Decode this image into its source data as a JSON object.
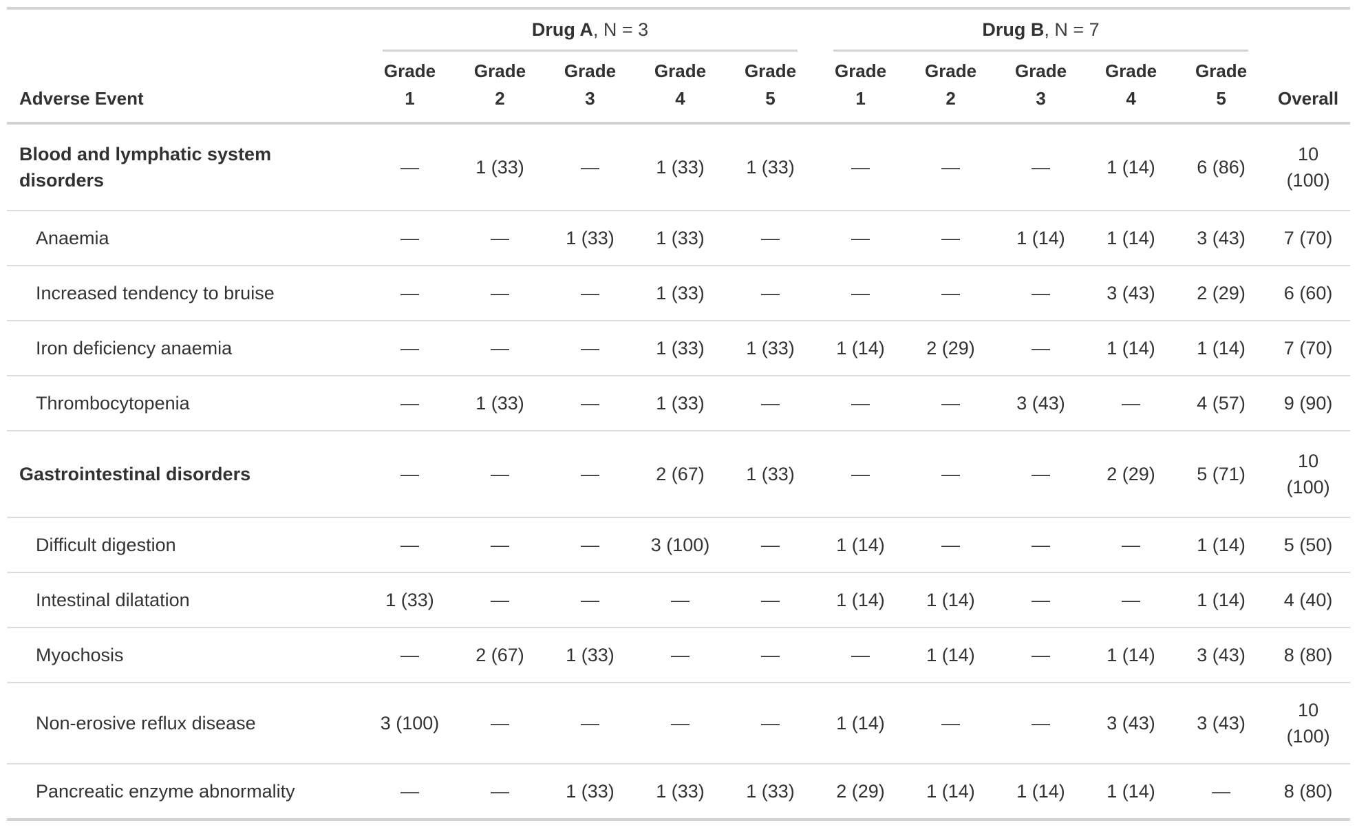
{
  "table": {
    "columns": {
      "row_label": "Adverse Event",
      "overall": "Overall"
    },
    "spanners": [
      {
        "name": "Drug A",
        "suffix": ", N = 3"
      },
      {
        "name": "Drug B",
        "suffix": ", N = 7"
      }
    ],
    "grade_column": {
      "word": "Grade",
      "numbers": [
        "1",
        "2",
        "3",
        "4",
        "5"
      ]
    },
    "rows": [
      {
        "label": "Blood and lymphatic system disorders",
        "group": true,
        "values": [
          "—",
          "1 (33)",
          "—",
          "1 (33)",
          "1 (33)",
          "—",
          "—",
          "—",
          "1 (14)",
          "6 (86)",
          "10 (100)"
        ]
      },
      {
        "label": "Anaemia",
        "group": false,
        "values": [
          "—",
          "—",
          "1 (33)",
          "1 (33)",
          "—",
          "—",
          "—",
          "1 (14)",
          "1 (14)",
          "3 (43)",
          "7 (70)"
        ]
      },
      {
        "label": "Increased tendency to bruise",
        "group": false,
        "values": [
          "—",
          "—",
          "—",
          "1 (33)",
          "—",
          "—",
          "—",
          "—",
          "3 (43)",
          "2 (29)",
          "6 (60)"
        ]
      },
      {
        "label": "Iron deficiency anaemia",
        "group": false,
        "values": [
          "—",
          "—",
          "—",
          "1 (33)",
          "1 (33)",
          "1 (14)",
          "2 (29)",
          "—",
          "1 (14)",
          "1 (14)",
          "7 (70)"
        ]
      },
      {
        "label": "Thrombocytopenia",
        "group": false,
        "values": [
          "—",
          "1 (33)",
          "—",
          "1 (33)",
          "—",
          "—",
          "—",
          "3 (43)",
          "—",
          "4 (57)",
          "9 (90)"
        ]
      },
      {
        "label": "Gastrointestinal disorders",
        "group": true,
        "values": [
          "—",
          "—",
          "—",
          "2 (67)",
          "1 (33)",
          "—",
          "—",
          "—",
          "2 (29)",
          "5 (71)",
          "10 (100)"
        ]
      },
      {
        "label": "Difficult digestion",
        "group": false,
        "values": [
          "—",
          "—",
          "—",
          "3 (100)",
          "—",
          "1 (14)",
          "—",
          "—",
          "—",
          "1 (14)",
          "5 (50)"
        ]
      },
      {
        "label": "Intestinal dilatation",
        "group": false,
        "values": [
          "1 (33)",
          "—",
          "—",
          "—",
          "—",
          "1 (14)",
          "1 (14)",
          "—",
          "—",
          "1 (14)",
          "4 (40)"
        ]
      },
      {
        "label": "Myochosis",
        "group": false,
        "values": [
          "—",
          "2 (67)",
          "1 (33)",
          "—",
          "—",
          "—",
          "1 (14)",
          "—",
          "1 (14)",
          "3 (43)",
          "8 (80)"
        ]
      },
      {
        "label": "Non-erosive reflux disease",
        "group": false,
        "values": [
          "3 (100)",
          "—",
          "—",
          "—",
          "—",
          "1 (14)",
          "—",
          "—",
          "3 (43)",
          "3 (43)",
          "10 (100)"
        ]
      },
      {
        "label": "Pancreatic enzyme abnormality",
        "group": false,
        "values": [
          "—",
          "—",
          "1 (33)",
          "1 (33)",
          "1 (33)",
          "2 (29)",
          "1 (14)",
          "1 (14)",
          "1 (14)",
          "—",
          "8 (80)"
        ]
      }
    ],
    "colors": {
      "border_heavy": "#d3d3d3",
      "border_light": "#dcdcdc",
      "text": "#333333"
    }
  }
}
